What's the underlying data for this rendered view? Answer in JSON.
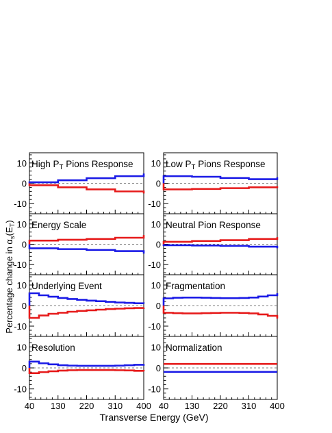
{
  "figure": {
    "ylabel": "Percentage change in α_s(E_T)",
    "xlabel": "Transverse Energy (GeV)",
    "xticks": [
      "40",
      "130",
      "220",
      "310",
      "400"
    ],
    "yticks": [
      "10",
      "0",
      "-10"
    ]
  },
  "colors": {
    "up": "#1a1ae6",
    "down": "#e61a1a",
    "axis": "#000000"
  },
  "chart_data": [
    {
      "type": "line",
      "title": "High P_T Pions Response",
      "xlim": [
        40,
        400
      ],
      "ylim": [
        -15,
        15
      ],
      "x": [
        40,
        130,
        220,
        310,
        400
      ],
      "series": [
        {
          "color": "blue",
          "values": [
            0.5,
            1.5,
            2.5,
            3.5,
            4.8
          ]
        },
        {
          "color": "red",
          "values": [
            -1.0,
            -2.0,
            -3.0,
            -4.0,
            -5.0
          ]
        }
      ]
    },
    {
      "type": "line",
      "title": "Low P_T Pions Response",
      "xlim": [
        40,
        400
      ],
      "ylim": [
        -15,
        15
      ],
      "x": [
        40,
        130,
        220,
        310,
        400
      ],
      "series": [
        {
          "color": "blue",
          "values": [
            3.5,
            3.2,
            2.6,
            2.0,
            3.0
          ]
        },
        {
          "color": "red",
          "values": [
            -3.0,
            -2.8,
            -2.4,
            -2.0,
            -1.5
          ]
        }
      ]
    },
    {
      "type": "line",
      "title": "Energy Scale",
      "xlim": [
        40,
        400
      ],
      "ylim": [
        -15,
        15
      ],
      "x": [
        40,
        130,
        220,
        310,
        400
      ],
      "series": [
        {
          "color": "red",
          "values": [
            1.8,
            2.2,
            2.6,
            3.2,
            4.5
          ]
        },
        {
          "color": "blue",
          "values": [
            -2.0,
            -2.4,
            -2.8,
            -3.4,
            -4.6
          ]
        }
      ]
    },
    {
      "type": "line",
      "title": "Neutral Pion Response",
      "xlim": [
        40,
        400
      ],
      "ylim": [
        -15,
        15
      ],
      "x": [
        40,
        130,
        220,
        310,
        400
      ],
      "series": [
        {
          "color": "red",
          "values": [
            1.2,
            1.6,
            2.0,
            2.6,
            3.5
          ]
        },
        {
          "color": "blue",
          "values": [
            -0.5,
            -0.6,
            -0.8,
            -1.2,
            -2.0
          ]
        }
      ]
    },
    {
      "type": "line",
      "title": "Underlying Event",
      "xlim": [
        40,
        400
      ],
      "ylim": [
        -15,
        15
      ],
      "x": [
        40,
        70,
        100,
        130,
        160,
        190,
        220,
        250,
        280,
        310,
        340,
        370,
        400
      ],
      "series": [
        {
          "color": "blue",
          "values": [
            6.0,
            5.0,
            4.3,
            3.7,
            3.2,
            2.8,
            2.4,
            2.1,
            1.8,
            1.5,
            1.3,
            1.1,
            1.0
          ]
        },
        {
          "color": "red",
          "values": [
            -6.0,
            -4.8,
            -4.0,
            -3.5,
            -3.0,
            -2.6,
            -2.3,
            -2.0,
            -1.7,
            -1.5,
            -1.3,
            -1.2,
            -1.0
          ]
        }
      ]
    },
    {
      "type": "line",
      "title": "Fragmentation",
      "xlim": [
        40,
        400
      ],
      "ylim": [
        -15,
        15
      ],
      "x": [
        40,
        70,
        100,
        130,
        160,
        190,
        220,
        250,
        280,
        310,
        340,
        370,
        400
      ],
      "series": [
        {
          "color": "blue",
          "values": [
            3.5,
            3.8,
            3.9,
            3.9,
            3.8,
            3.7,
            3.6,
            3.6,
            3.7,
            3.9,
            4.4,
            5.0,
            6.0
          ]
        },
        {
          "color": "red",
          "values": [
            -3.5,
            -3.7,
            -3.8,
            -3.8,
            -3.7,
            -3.6,
            -3.5,
            -3.5,
            -3.6,
            -3.8,
            -4.3,
            -5.0,
            -6.3
          ]
        }
      ]
    },
    {
      "type": "line",
      "title": "Resolution",
      "xlim": [
        40,
        400
      ],
      "ylim": [
        -15,
        15
      ],
      "x": [
        40,
        70,
        100,
        130,
        160,
        190,
        220,
        250,
        280,
        310,
        340,
        370,
        400
      ],
      "series": [
        {
          "color": "blue",
          "values": [
            3.0,
            2.2,
            1.7,
            1.3,
            1.1,
            1.0,
            1.0,
            1.0,
            1.0,
            1.1,
            1.3,
            1.5,
            1.8
          ]
        },
        {
          "color": "red",
          "values": [
            -2.5,
            -2.0,
            -1.6,
            -1.3,
            -1.1,
            -1.0,
            -1.0,
            -1.0,
            -1.0,
            -1.1,
            -1.2,
            -1.4,
            -1.6
          ]
        }
      ]
    },
    {
      "type": "line",
      "title": "Normalization",
      "xlim": [
        40,
        400
      ],
      "ylim": [
        -15,
        15
      ],
      "x": [
        40,
        400
      ],
      "series": [
        {
          "color": "red",
          "values": [
            1.9,
            1.9
          ]
        },
        {
          "color": "blue",
          "values": [
            -1.9,
            -1.9
          ]
        }
      ]
    }
  ]
}
